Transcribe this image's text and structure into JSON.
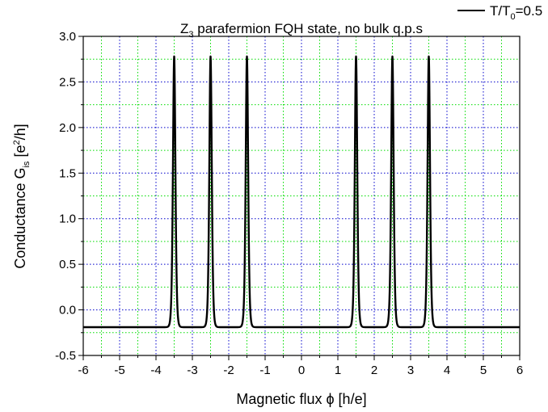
{
  "chart_data": {
    "type": "line",
    "title": {
      "main": "Z",
      "sub": "3",
      "rest": " parafermion FQH state, no bulk q.p.s"
    },
    "xlabel": "Magnetic flux ϕ [h/e]",
    "ylabel": {
      "pre": "Conductance G",
      "sub": "is",
      "mid": "  [e",
      "sup": "2",
      "post": "/h]"
    },
    "xlim": [
      -6,
      6
    ],
    "ylim": [
      -0.5,
      3.0
    ],
    "x_ticks": [
      -6,
      -5,
      -4,
      -3,
      -2,
      -1,
      0,
      1,
      2,
      3,
      4,
      5,
      6
    ],
    "x_tick_labels": [
      "-6",
      "-5",
      "-4",
      "-3",
      "-2",
      "-1",
      "0",
      "1",
      "2",
      "3",
      "4",
      "5",
      "6"
    ],
    "y_ticks": [
      -0.5,
      0.0,
      0.5,
      1.0,
      1.5,
      2.0,
      2.5,
      3.0
    ],
    "y_tick_labels": [
      "-0.5",
      "0.0",
      "0.5",
      "1.0",
      "1.5",
      "2.0",
      "2.5",
      "3.0"
    ],
    "grid": true,
    "legend_position": "top-right",
    "series": [
      {
        "name": "T/T0=0.5",
        "name_parts": {
          "pre": "T/T",
          "sub": "0",
          "post": "=0.5"
        },
        "color": "#000000",
        "baseline": -0.19,
        "peak_height": 2.78,
        "peaks": [
          -3.5,
          -2.5,
          -1.5,
          1.5,
          2.5,
          3.5
        ]
      }
    ],
    "colors": {
      "major_grid": "#00dd00",
      "minor_grid": "#0000cc",
      "frame": "#000000"
    }
  }
}
